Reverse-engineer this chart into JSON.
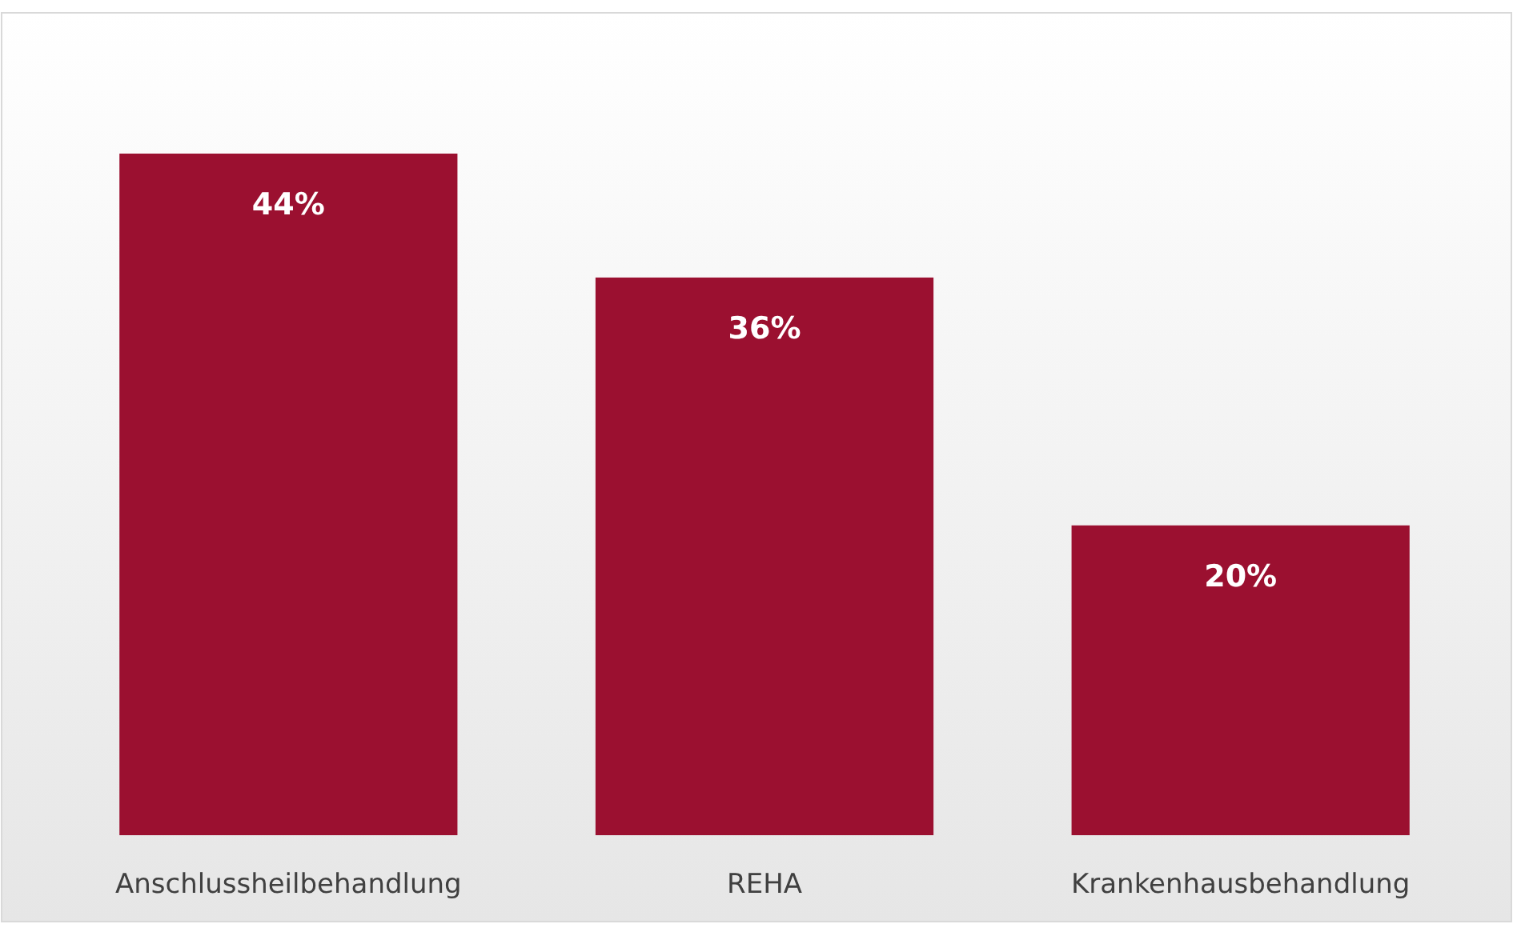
{
  "chart_data": {
    "type": "bar",
    "categories": [
      "Anschlussheilbehandlung",
      "REHA",
      "Krankenhausbehandlung"
    ],
    "values": [
      44,
      36,
      20
    ],
    "color": "#9b1030",
    "value_labels": [
      "44%",
      "36%",
      "20%"
    ]
  }
}
